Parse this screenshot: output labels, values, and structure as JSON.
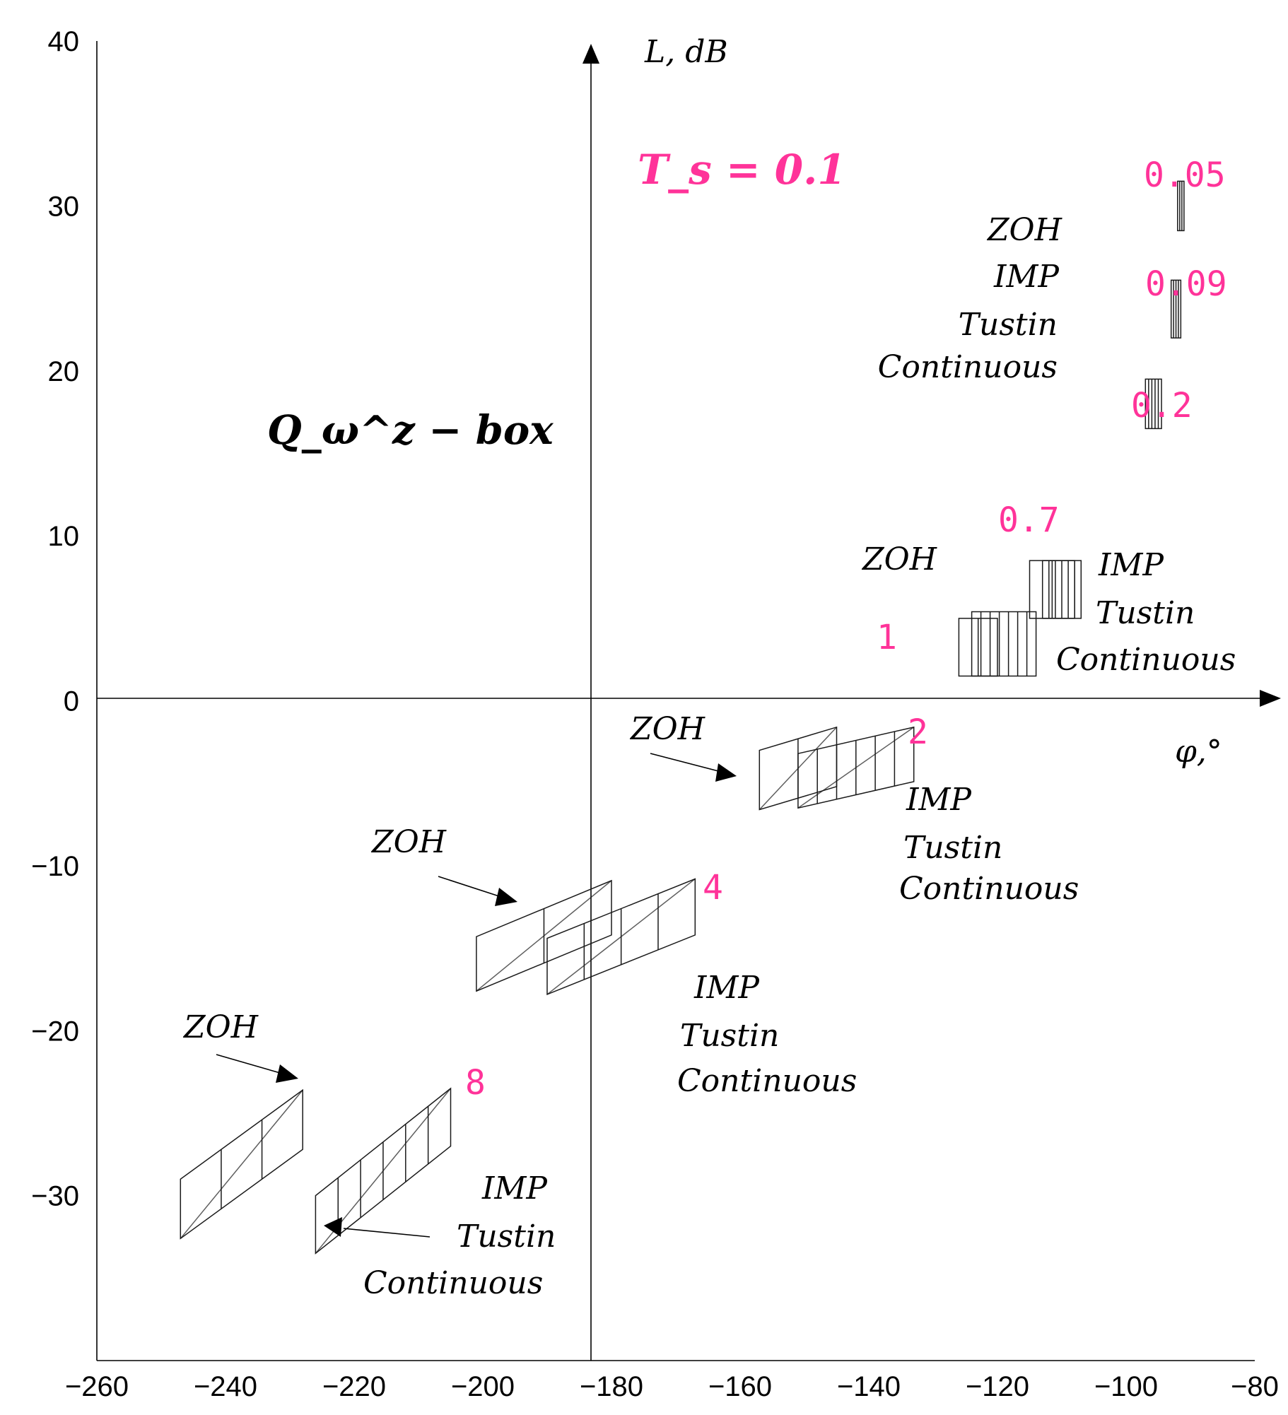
{
  "chart_data": {
    "type": "scatter",
    "title": "",
    "xlabel": "φ,°",
    "ylabel": "L, dB",
    "xlim": [
      -260,
      -80
    ],
    "ylim": [
      -40,
      40
    ],
    "x_ticks": [
      "−260",
      "−240",
      "−220",
      "−200",
      "−180",
      "−160",
      "−140",
      "−120",
      "−100",
      "−80"
    ],
    "y_ticks": [
      "40",
      "30",
      "20",
      "10",
      "0",
      "−10",
      "−20",
      "−30"
    ],
    "y_tick_values": [
      40,
      30,
      20,
      10,
      0,
      -10,
      -20,
      -30
    ],
    "x_tick_values": [
      -260,
      -240,
      -220,
      -200,
      -180,
      -160,
      -140,
      -120,
      -100,
      -80
    ],
    "annotations": {
      "sampling": "T_s = 0.1",
      "box_name": "Q_ω^z − box"
    },
    "frequency_labels": [
      "0.05",
      "0.09",
      "0.2",
      "0.7",
      "1",
      "2",
      "4",
      "8"
    ],
    "method_labels": {
      "top": [
        "ZOH",
        "IMP",
        "Tustin",
        "Continuous"
      ],
      "f07": [
        "ZOH",
        "IMP",
        "Tustin",
        "Continuous"
      ],
      "f2": [
        "ZOH",
        "IMP",
        "Tustin",
        "Continuous"
      ],
      "f4": [
        "ZOH",
        "IMP",
        "Tustin",
        "Continuous"
      ],
      "f8": [
        "ZOH",
        "IMP",
        "Tustin",
        "Continuous"
      ]
    },
    "boxes": [
      {
        "freq": "0.05",
        "phase": [
          -92,
          -91
        ],
        "mag": [
          28.5,
          31.5
        ],
        "shift": [
          0,
          0
        ],
        "layers": 2
      },
      {
        "freq": "0.09",
        "phase": [
          -93,
          -91.5
        ],
        "mag": [
          22,
          25.5
        ],
        "shift": [
          0,
          0
        ],
        "layers": 3
      },
      {
        "freq": "0.2",
        "phase": [
          -97,
          -94.5
        ],
        "mag": [
          16.5,
          19.5
        ],
        "shift": [
          0,
          0
        ],
        "layers": 4
      },
      {
        "freq": "0.7 ZOH",
        "phase": [
          -115,
          -108
        ],
        "mag": [
          5,
          8.5
        ],
        "shift": [
          0,
          0
        ],
        "layers": 1
      },
      {
        "freq": "0.7",
        "phase": [
          -113,
          -107
        ],
        "mag": [
          5,
          8.5
        ],
        "shift": [
          0,
          0
        ],
        "layers": 5
      },
      {
        "freq": "1 ZOH",
        "phase": [
          -126,
          -120
        ],
        "mag": [
          1.5,
          5
        ],
        "shift": [
          0,
          0
        ],
        "layers": 1
      },
      {
        "freq": "1",
        "phase": [
          -124,
          -114
        ],
        "mag": [
          1.5,
          5.4
        ],
        "shift": [
          0,
          0
        ],
        "layers": 6
      },
      {
        "freq": "2 ZOH",
        "phase": [
          -157,
          -145
        ],
        "mag": [
          -6.6,
          -3.0
        ],
        "shift": [
          0,
          1.4
        ],
        "layers": 1
      },
      {
        "freq": "2",
        "phase": [
          -151,
          -133
        ],
        "mag": [
          -6.5,
          -3.2
        ],
        "shift": [
          0,
          1.6
        ],
        "layers": 5
      },
      {
        "freq": "4 ZOH",
        "phase": [
          -201,
          -180
        ],
        "mag": [
          -17.6,
          -14.3
        ],
        "shift": [
          0,
          3.4
        ],
        "layers": 1
      },
      {
        "freq": "4",
        "phase": [
          -190,
          -167
        ],
        "mag": [
          -17.8,
          -14.4
        ],
        "shift": [
          0,
          3.6
        ],
        "layers": 3
      },
      {
        "freq": "8 ZOH",
        "phase": [
          -247,
          -228
        ],
        "mag": [
          -32.6,
          -29.0
        ],
        "shift": [
          0,
          5.4
        ],
        "layers": 2
      },
      {
        "freq": "8",
        "phase": [
          -226,
          -205
        ],
        "mag": [
          -33.5,
          -30.0
        ],
        "shift": [
          0,
          6.5
        ],
        "layers": 5
      }
    ]
  }
}
